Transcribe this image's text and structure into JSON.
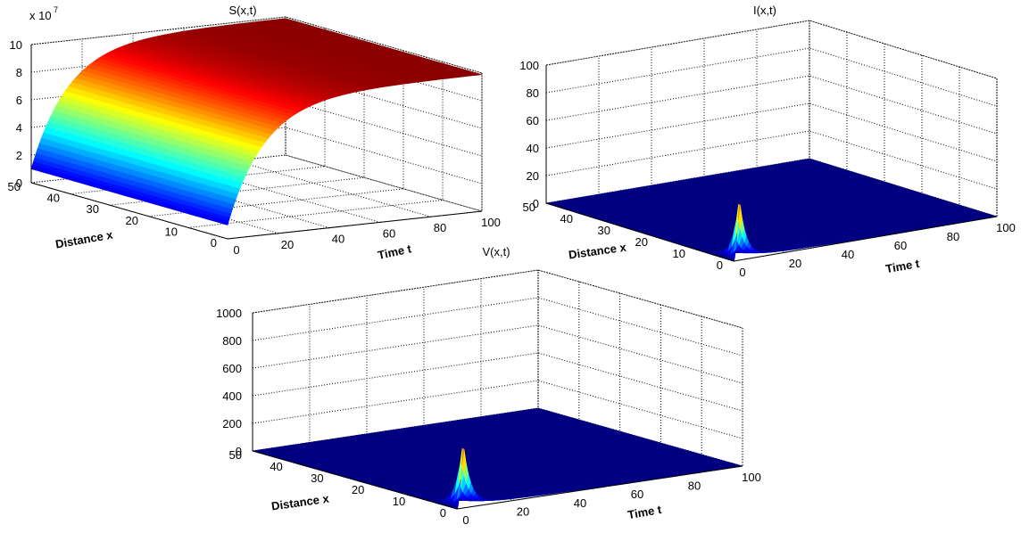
{
  "chart_data": [
    {
      "type": "surface",
      "title": "S(x,t)",
      "xlabel": "Time t",
      "ylabel": "Distance x",
      "zlabel": "",
      "exponent_label": "x 10",
      "exponent_power": "7",
      "x_ticks": [
        "0",
        "20",
        "40",
        "60",
        "80",
        "100"
      ],
      "y_ticks": [
        "0",
        "10",
        "20",
        "30",
        "40",
        "50"
      ],
      "z_ticks": [
        "0",
        "2",
        "4",
        "6",
        "8",
        "10"
      ],
      "xlim": [
        0,
        100
      ],
      "ylim": [
        0,
        50
      ],
      "zlim": [
        0,
        10
      ],
      "z_scale": 10000000,
      "surface": {
        "shape": "saturating_rise_in_t_uniform_in_x",
        "z_at_t0": 1.0,
        "z_plateau": 9.9,
        "t_half_rise": 10
      },
      "colormap": "jet",
      "grid": true
    },
    {
      "type": "surface",
      "title": "I(x,t)",
      "xlabel": "Time t",
      "ylabel": "Distance x",
      "zlabel": "",
      "x_ticks": [
        "0",
        "20",
        "40",
        "60",
        "80",
        "100"
      ],
      "y_ticks": [
        "0",
        "10",
        "20",
        "30",
        "40",
        "50"
      ],
      "z_ticks": [
        "0",
        "20",
        "40",
        "60",
        "80",
        "100"
      ],
      "xlim": [
        0,
        100
      ],
      "ylim": [
        0,
        50
      ],
      "zlim": [
        0,
        100
      ],
      "surface": {
        "shape": "sharp_peak_near_origin_then_decay",
        "peak_t": 2,
        "peak_x": 0,
        "peak_value": 46,
        "baseline": 0
      },
      "colormap": "jet",
      "grid": true
    },
    {
      "type": "surface",
      "title": "V(x,t)",
      "xlabel": "Time t",
      "ylabel": "Distance x",
      "zlabel": "",
      "x_ticks": [
        "0",
        "20",
        "40",
        "60",
        "80",
        "100"
      ],
      "y_ticks": [
        "0",
        "10",
        "20",
        "30",
        "40",
        "50"
      ],
      "z_ticks": [
        "0",
        "200",
        "400",
        "600",
        "800",
        "1000"
      ],
      "xlim": [
        0,
        100
      ],
      "ylim": [
        0,
        50
      ],
      "zlim": [
        0,
        1000
      ],
      "surface": {
        "shape": "sharp_peak_near_origin_then_decay",
        "peak_t": 2,
        "peak_x": 0,
        "peak_value": 490,
        "baseline": 0
      },
      "colormap": "jet",
      "grid": true
    }
  ]
}
